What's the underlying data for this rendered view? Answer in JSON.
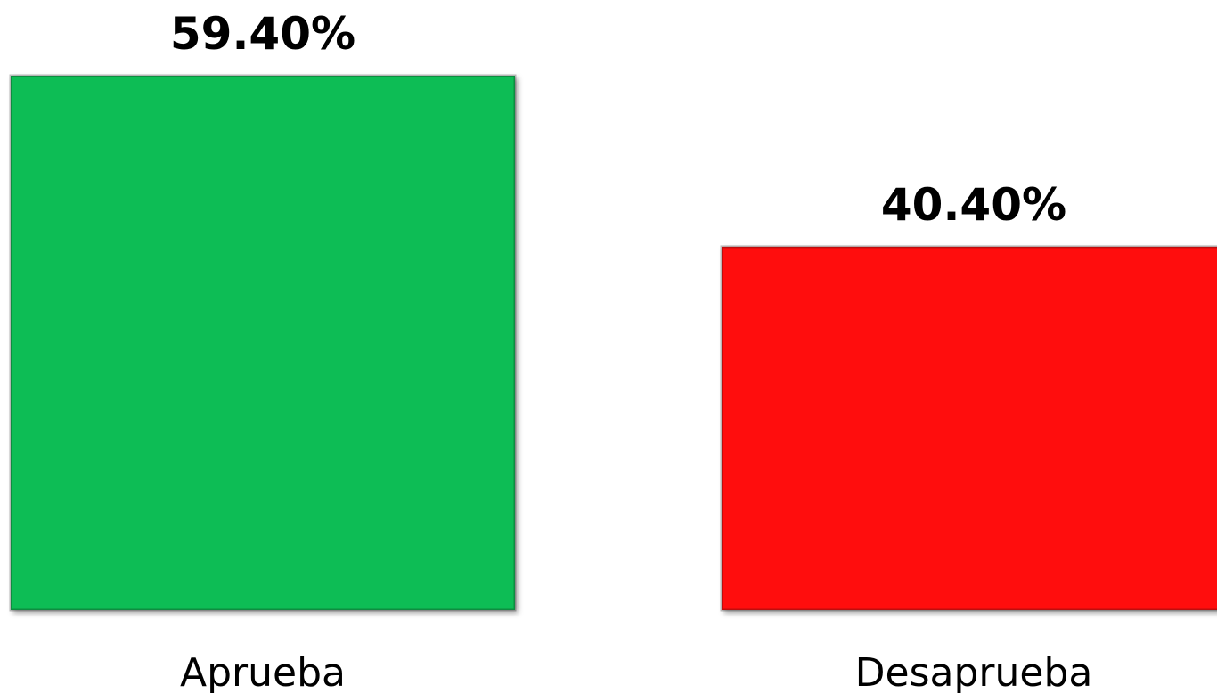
{
  "chart_data": {
    "type": "bar",
    "categories": [
      "Aprueba",
      "Desaprueba"
    ],
    "values": [
      59.4,
      40.4
    ],
    "value_labels": [
      "59.40%",
      "40.40%"
    ],
    "colors": [
      "#0abd55",
      "#ff0a0a"
    ]
  }
}
